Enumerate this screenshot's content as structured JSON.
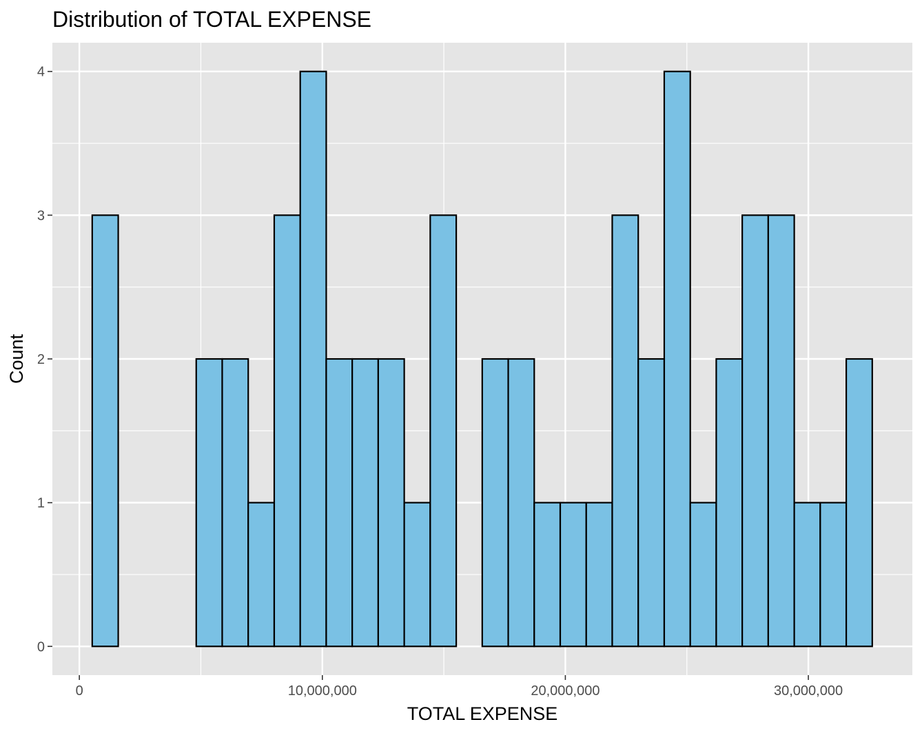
{
  "chart_data": {
    "type": "bar",
    "subtype": "histogram",
    "title": "Distribution of TOTAL EXPENSE",
    "xlabel": "TOTAL EXPENSE",
    "ylabel": "Count",
    "bin_width": 1070000,
    "bins": [
      {
        "x0": 530000,
        "x1": 1600000,
        "count": 3
      },
      {
        "x0": 1600000,
        "x1": 2670000,
        "count": 0
      },
      {
        "x0": 2670000,
        "x1": 3740000,
        "count": 0
      },
      {
        "x0": 3740000,
        "x1": 4810000,
        "count": 0
      },
      {
        "x0": 4810000,
        "x1": 5880000,
        "count": 2
      },
      {
        "x0": 5880000,
        "x1": 6950000,
        "count": 2
      },
      {
        "x0": 6950000,
        "x1": 8020000,
        "count": 1
      },
      {
        "x0": 8020000,
        "x1": 9090000,
        "count": 3
      },
      {
        "x0": 9090000,
        "x1": 10160000,
        "count": 4
      },
      {
        "x0": 10160000,
        "x1": 11230000,
        "count": 2
      },
      {
        "x0": 11230000,
        "x1": 12300000,
        "count": 2
      },
      {
        "x0": 12300000,
        "x1": 13370000,
        "count": 2
      },
      {
        "x0": 13370000,
        "x1": 14440000,
        "count": 1
      },
      {
        "x0": 14440000,
        "x1": 15510000,
        "count": 3
      },
      {
        "x0": 15510000,
        "x1": 16580000,
        "count": 0
      },
      {
        "x0": 16580000,
        "x1": 17650000,
        "count": 2
      },
      {
        "x0": 17650000,
        "x1": 18720000,
        "count": 2
      },
      {
        "x0": 18720000,
        "x1": 19790000,
        "count": 1
      },
      {
        "x0": 19790000,
        "x1": 20860000,
        "count": 1
      },
      {
        "x0": 20860000,
        "x1": 21930000,
        "count": 1
      },
      {
        "x0": 21930000,
        "x1": 23000000,
        "count": 3
      },
      {
        "x0": 23000000,
        "x1": 24070000,
        "count": 2
      },
      {
        "x0": 24070000,
        "x1": 25140000,
        "count": 4
      },
      {
        "x0": 25140000,
        "x1": 26210000,
        "count": 1
      },
      {
        "x0": 26210000,
        "x1": 27280000,
        "count": 2
      },
      {
        "x0": 27280000,
        "x1": 28350000,
        "count": 3
      },
      {
        "x0": 28350000,
        "x1": 29420000,
        "count": 3
      },
      {
        "x0": 29420000,
        "x1": 30490000,
        "count": 1
      },
      {
        "x0": 30490000,
        "x1": 31560000,
        "count": 1
      },
      {
        "x0": 31560000,
        "x1": 32630000,
        "count": 2
      }
    ],
    "xlim": [
      -1110000,
      34280000
    ],
    "ylim": [
      -0.2,
      4.2
    ],
    "x_ticks": [
      {
        "value": 0,
        "label": "0"
      },
      {
        "value": 10000000,
        "label": "10,000,000"
      },
      {
        "value": 20000000,
        "label": "20,000,000"
      },
      {
        "value": 30000000,
        "label": "30,000,000"
      }
    ],
    "x_minor_ticks": [
      5000000,
      15000000,
      25000000
    ],
    "y_ticks": [
      {
        "value": 0,
        "label": "0"
      },
      {
        "value": 1,
        "label": "1"
      },
      {
        "value": 2,
        "label": "2"
      },
      {
        "value": 3,
        "label": "3"
      },
      {
        "value": 4,
        "label": "4"
      }
    ],
    "y_minor_ticks": [
      0.5,
      1.5,
      2.5,
      3.5
    ],
    "grid": true,
    "legend": "none",
    "colors": {
      "bar_fill": "#7ac1e4",
      "bar_outline": "#000000",
      "panel_background": "#e5e5e5",
      "grid": "#ffffff"
    }
  }
}
